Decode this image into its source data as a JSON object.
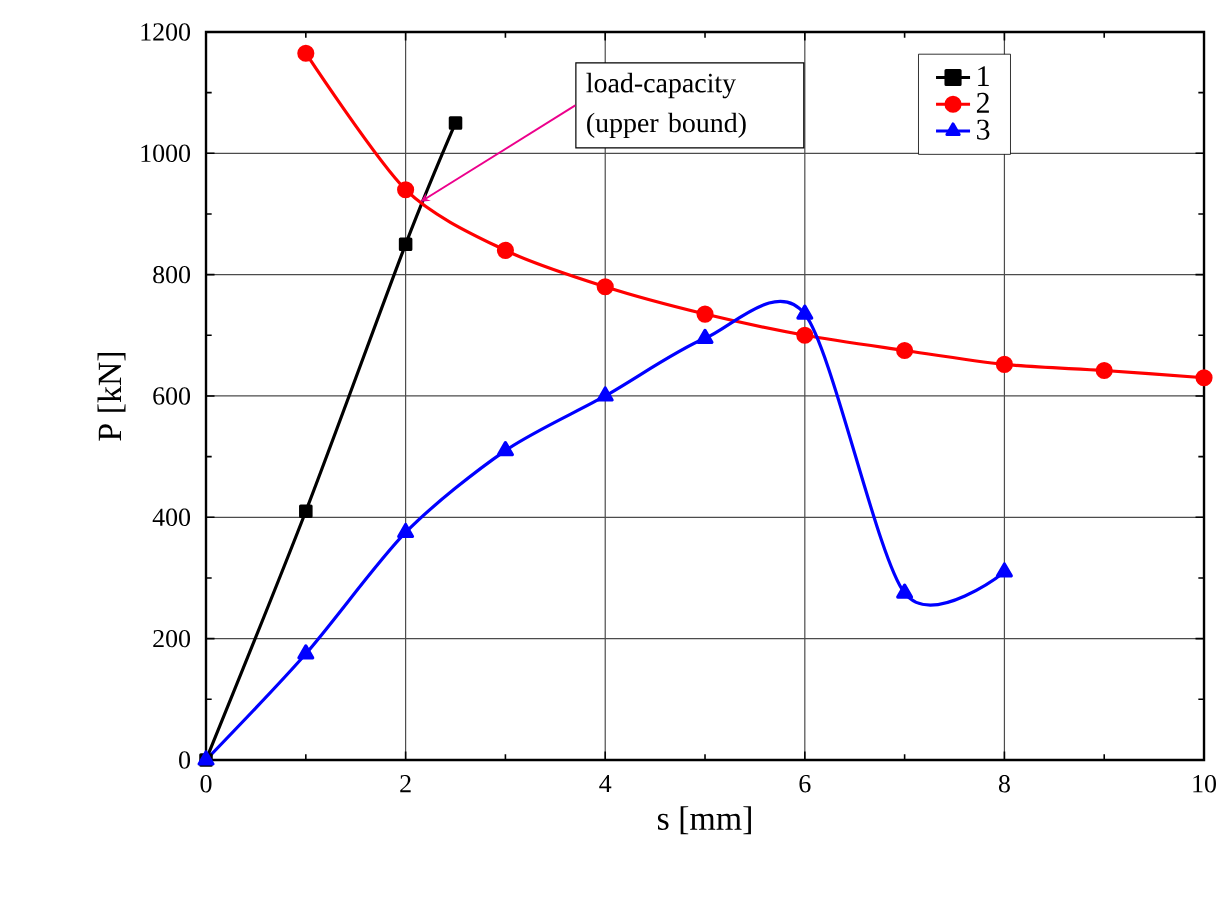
{
  "chart_data": {
    "type": "line",
    "xlabel": "s  [mm]",
    "ylabel": "P  [kN]",
    "xlim": [
      0,
      10
    ],
    "xticks": [
      0,
      2,
      4,
      6,
      8,
      10
    ],
    "ylim": [
      0,
      1200
    ],
    "yticks": [
      0,
      200,
      400,
      600,
      800,
      1000,
      1200
    ],
    "grid": true,
    "legend": "top right",
    "series": [
      {
        "name": "1",
        "color": "#000000",
        "marker": "square",
        "x": [
          0,
          1,
          2,
          2.5
        ],
        "values": [
          0,
          410,
          850,
          1050
        ]
      },
      {
        "name": "2",
        "color": "#ff0000",
        "marker": "circle",
        "x": [
          1,
          2,
          3,
          4,
          5,
          6,
          7,
          8,
          9,
          10
        ],
        "values": [
          1165,
          940,
          840,
          780,
          735,
          700,
          675,
          652,
          642,
          630
        ]
      },
      {
        "name": "3",
        "color": "#0000ff",
        "marker": "triangle",
        "x": [
          0,
          1,
          2,
          3,
          4,
          5,
          6,
          7,
          8
        ],
        "values": [
          0,
          175,
          375,
          510,
          600,
          695,
          735,
          275,
          310
        ]
      }
    ],
    "annotations": [
      {
        "text": "load-capacity (upper bound)",
        "x": 2.15,
        "y": 920
      }
    ]
  }
}
